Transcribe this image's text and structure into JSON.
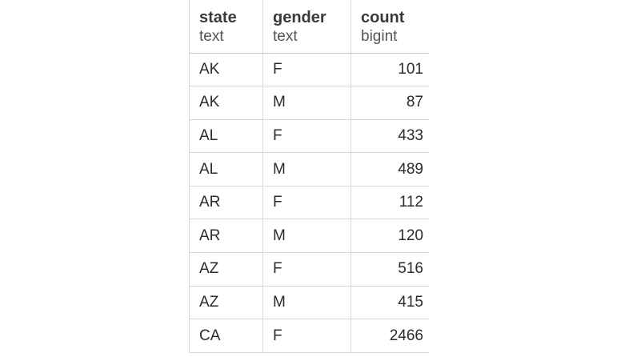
{
  "result_grid": {
    "columns": [
      {
        "name": "state",
        "type": "text"
      },
      {
        "name": "gender",
        "type": "text"
      },
      {
        "name": "count",
        "type": "bigint"
      }
    ],
    "rows": [
      {
        "state": "AK",
        "gender": "F",
        "count": "101"
      },
      {
        "state": "AK",
        "gender": "M",
        "count": "87"
      },
      {
        "state": "AL",
        "gender": "F",
        "count": "433"
      },
      {
        "state": "AL",
        "gender": "M",
        "count": "489"
      },
      {
        "state": "AR",
        "gender": "F",
        "count": "112"
      },
      {
        "state": "AR",
        "gender": "M",
        "count": "120"
      },
      {
        "state": "AZ",
        "gender": "F",
        "count": "516"
      },
      {
        "state": "AZ",
        "gender": "M",
        "count": "415"
      },
      {
        "state": "CA",
        "gender": "F",
        "count": "2466"
      }
    ]
  },
  "colors": {
    "accent": "#2f6fb3",
    "grid_line": "#d9d9d9",
    "text": "#2b2b2b"
  }
}
